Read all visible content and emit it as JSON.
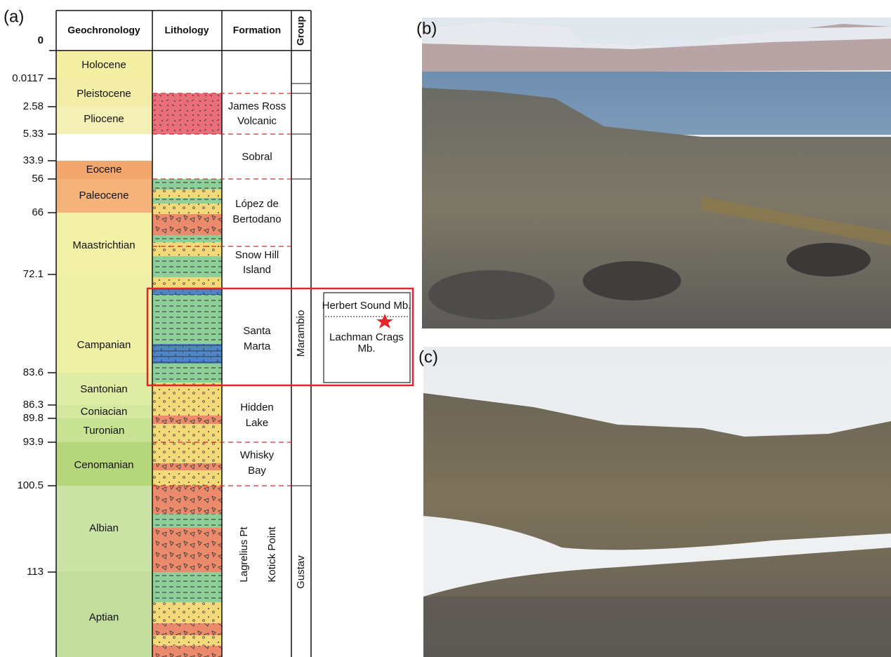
{
  "panels": {
    "a": "(a)",
    "b": "(b)",
    "c": "(c)"
  },
  "column": {
    "headers": [
      "Geochronology",
      "Lithology",
      "Formation",
      "Group"
    ],
    "ages": [
      "0",
      "0.0117",
      "2.58",
      "5.33",
      "33.9",
      "56",
      "66",
      "72.1",
      "83.6",
      "86.3",
      "89.8",
      "93.9",
      "100.5",
      "113"
    ],
    "epochs": [
      "Holocene",
      "Pleistocene",
      "Pliocene",
      "Eocene",
      "Paleocene",
      "Maastrichtian",
      "Campanian",
      "Santonian",
      "Coniacian",
      "Turonian",
      "Cenomanian",
      "Albian",
      "Aptian"
    ],
    "formations": [
      [
        "James Ross",
        "Volcanic"
      ],
      [
        "Sobral"
      ],
      [
        "López de",
        "Bertodano"
      ],
      [
        "Snow Hill",
        "Island"
      ],
      [
        "Santa",
        "Marta"
      ],
      [
        "Hidden",
        "Lake"
      ],
      [
        "Whisky",
        "Bay"
      ],
      [
        "Lagrelius Pt"
      ],
      [
        "Kotick Point"
      ]
    ],
    "groups": [
      "Marambio",
      "Gustav"
    ]
  },
  "inset": {
    "upper": "Herbert Sound Mb.",
    "lower": [
      "Lachman Crags",
      "Mb."
    ]
  }
}
